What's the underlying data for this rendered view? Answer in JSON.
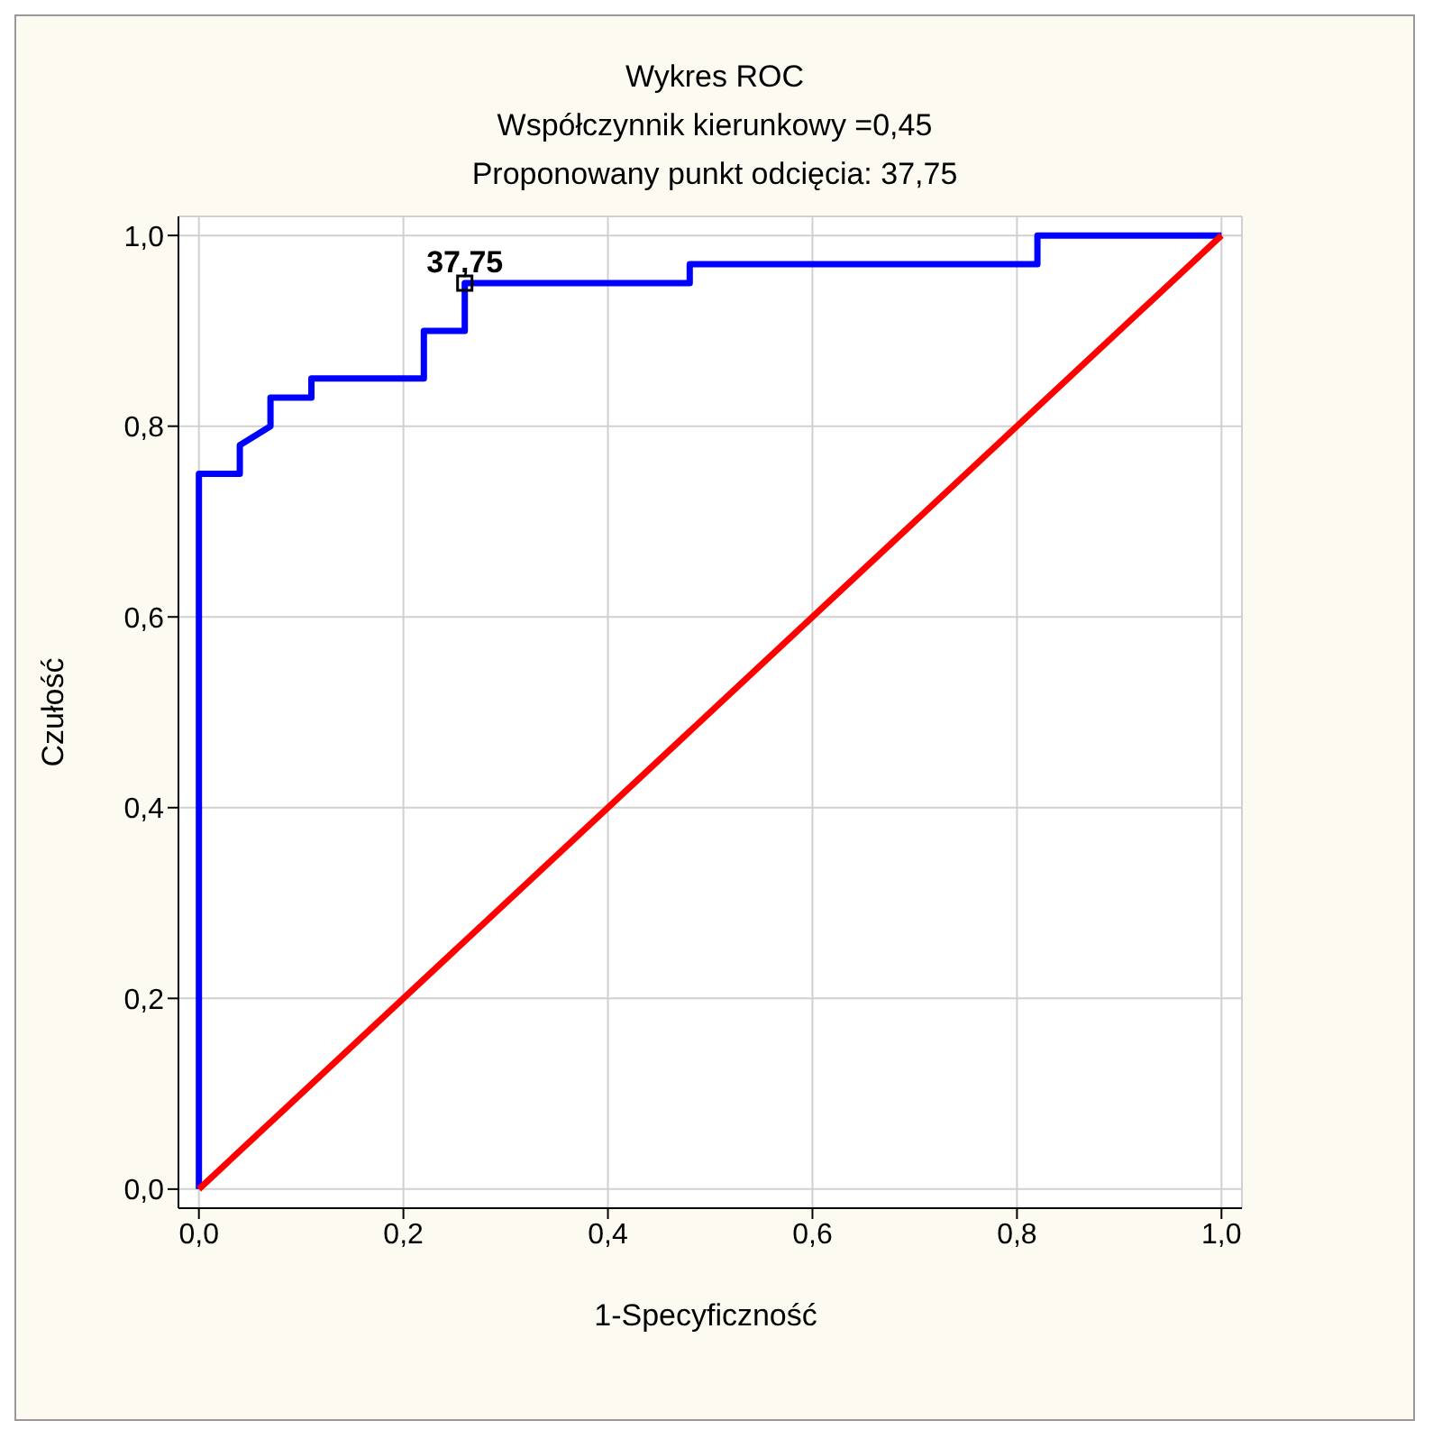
{
  "chart_data": {
    "type": "line",
    "title": "Wykres ROC",
    "subtitle": "Współczynnik kierunkowy =0,45",
    "annotations": [
      "Proponowany punkt odcięcia: 37,75",
      {
        "text": "37,75",
        "x": 0.26,
        "y": 0.95
      }
    ],
    "xlabel": "1-Specyficzność",
    "ylabel": "Czułość",
    "xlim": [
      -0.02,
      1.02
    ],
    "ylim": [
      -0.02,
      1.02
    ],
    "xticks": [
      {
        "value": 0,
        "label": "0,0"
      },
      {
        "value": 0.2,
        "label": "0,2"
      },
      {
        "value": 0.4,
        "label": "0,4"
      },
      {
        "value": 0.6,
        "label": "0,6"
      },
      {
        "value": 0.8,
        "label": "0,8"
      },
      {
        "value": 1,
        "label": "1,0"
      }
    ],
    "yticks": [
      {
        "value": 0,
        "label": "0,0"
      },
      {
        "value": 0.2,
        "label": "0,2"
      },
      {
        "value": 0.4,
        "label": "0,4"
      },
      {
        "value": 0.6,
        "label": "0,6"
      },
      {
        "value": 0.8,
        "label": "0,8"
      },
      {
        "value": 1,
        "label": "1,0"
      }
    ],
    "grid": true,
    "marker": "none",
    "line_style": "solid",
    "series": [
      {
        "color": "#0000ff",
        "x": [
          0,
          0,
          0.04,
          0.04,
          0.07,
          0.07,
          0.11,
          0.11,
          0.22,
          0.22,
          0.26,
          0.26,
          0.48,
          0.48,
          0.82,
          0.82,
          1
        ],
        "values": [
          0,
          0.75,
          0.75,
          0.78,
          0.8,
          0.83,
          0.83,
          0.85,
          0.85,
          0.9,
          0.9,
          0.95,
          0.95,
          0.97,
          0.97,
          1,
          1
        ]
      },
      {
        "color": "#ff0000",
        "x": [
          0,
          1
        ],
        "values": [
          0,
          1
        ]
      },
      {
        "type": "scatter",
        "color": "#000000",
        "marker": "square",
        "x": [
          0.26
        ],
        "values": [
          0.95
        ]
      }
    ]
  }
}
